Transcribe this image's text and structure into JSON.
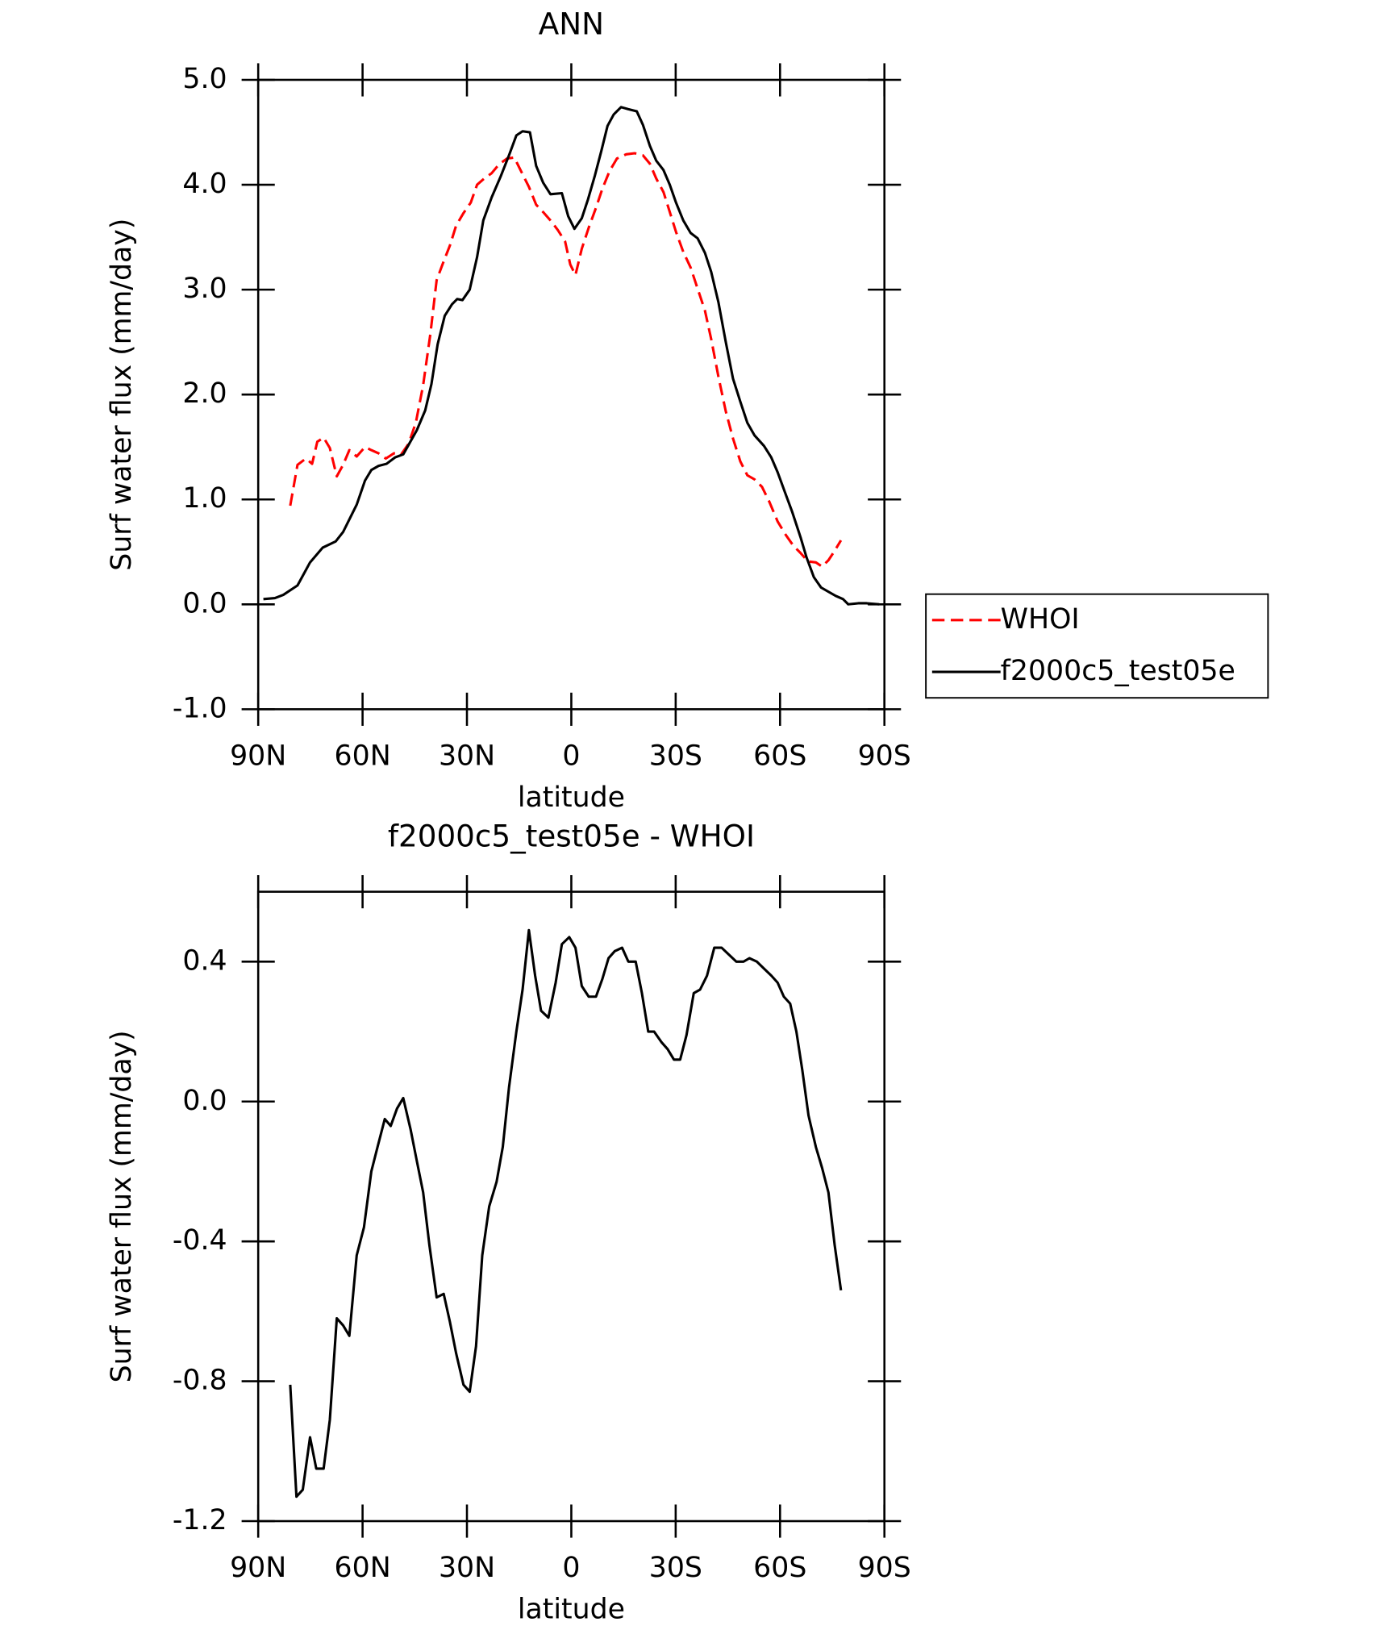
{
  "chart_data": [
    {
      "type": "line",
      "title": "ANN",
      "xlabel": "latitude",
      "ylabel": "Surf water flux (mm/day)",
      "xlim": [
        90,
        -90
      ],
      "xticks": [
        {
          "value": 90,
          "label": "90N"
        },
        {
          "value": 60,
          "label": "60N"
        },
        {
          "value": 30,
          "label": "30N"
        },
        0,
        {
          "value": -30,
          "label": "30S"
        },
        {
          "value": -60,
          "label": "60S"
        },
        {
          "value": -90,
          "label": "90S"
        }
      ],
      "ylim": [
        -1,
        5
      ],
      "yticks": [
        {
          "value": -1,
          "label": "-1.0"
        },
        {
          "value": 0,
          "label": "0.0"
        },
        {
          "value": 1,
          "label": "1.0"
        },
        {
          "value": 2,
          "label": "2.0"
        },
        {
          "value": 3,
          "label": "3.0"
        },
        {
          "value": 4,
          "label": "4.0"
        },
        {
          "value": 5,
          "label": "5.0"
        }
      ],
      "legend": "right",
      "series": [
        {
          "name": "WHOI",
          "color": "#ff0000",
          "style": "dashed",
          "x": [
            80.8,
            78.7,
            76.3,
            74.5,
            73.0,
            71.2,
            69.4,
            67.4,
            65.6,
            63.8,
            61.7,
            59.3,
            57.5,
            55.4,
            53.3,
            51.0,
            48.9,
            46.8,
            44.7,
            42.6,
            40.5,
            38.7,
            36.7,
            34.9,
            33.1,
            31.0,
            28.9,
            27.1,
            25.0,
            22.9,
            20.9,
            18.5,
            16.4,
            14.3,
            12.2,
            10.1,
            8.1,
            6.0,
            3.9,
            1.8,
            0.3,
            -1.2,
            -3.0,
            -5.0,
            -7.1,
            -8.9,
            -11.0,
            -13.1,
            -15.8,
            -18.2,
            -20.6,
            -22.6,
            -24.4,
            -26.5,
            -28.3,
            -30.1,
            -32.2,
            -34.3,
            -36.3,
            -38.4,
            -40.2,
            -42.3,
            -44.4,
            -46.5,
            -48.6,
            -50.6,
            -52.7,
            -54.8,
            -56.9,
            -59.3,
            -61.7,
            -63.8,
            -65.9,
            -68.0,
            -70.3,
            -72.1,
            -73.9,
            -75.7,
            -77.5
          ],
          "values": [
            0.94,
            1.33,
            1.39,
            1.34,
            1.55,
            1.59,
            1.49,
            1.22,
            1.33,
            1.47,
            1.41,
            1.5,
            1.47,
            1.44,
            1.39,
            1.44,
            1.43,
            1.53,
            1.73,
            2.09,
            2.58,
            3.09,
            3.27,
            3.42,
            3.61,
            3.73,
            3.83,
            4.0,
            4.06,
            4.11,
            4.19,
            4.25,
            4.26,
            4.12,
            3.98,
            3.81,
            3.74,
            3.66,
            3.57,
            3.46,
            3.24,
            3.14,
            3.39,
            3.59,
            3.78,
            3.96,
            4.13,
            4.25,
            4.29,
            4.3,
            4.28,
            4.2,
            4.06,
            3.93,
            3.74,
            3.55,
            3.36,
            3.21,
            3.01,
            2.8,
            2.53,
            2.17,
            1.84,
            1.58,
            1.36,
            1.23,
            1.19,
            1.12,
            0.98,
            0.79,
            0.66,
            0.56,
            0.49,
            0.41,
            0.4,
            0.36,
            0.42,
            0.51,
            0.61
          ]
        },
        {
          "name": "f2000c5_test05e",
          "color": "#000000",
          "style": "solid",
          "x": [
            88.5,
            85.2,
            82.8,
            78.7,
            75.1,
            71.5,
            67.7,
            65.6,
            61.7,
            59.3,
            57.5,
            55.4,
            53.1,
            50.7,
            48.3,
            44.4,
            42.0,
            40.2,
            38.4,
            36.4,
            34.3,
            32.8,
            31.3,
            29.2,
            27.1,
            25.3,
            22.9,
            20.3,
            17.9,
            15.8,
            14.0,
            11.9,
            10.1,
            8.1,
            6.0,
            2.7,
            0.9,
            -0.9,
            -3.0,
            -4.8,
            -6.8,
            -8.6,
            -10.4,
            -12.2,
            -14.3,
            -16.4,
            -18.8,
            -20.6,
            -22.6,
            -24.4,
            -26.5,
            -28.3,
            -30.1,
            -32.2,
            -34.3,
            -36.3,
            -38.4,
            -40.2,
            -42.3,
            -44.4,
            -46.5,
            -48.6,
            -50.6,
            -52.7,
            -55.4,
            -57.5,
            -59.3,
            -61.4,
            -63.5,
            -65.9,
            -67.6,
            -69.7,
            -71.8,
            -73.9,
            -76.0,
            -78.1,
            -79.6,
            -82.5,
            -84.9,
            -88.5
          ],
          "values": [
            0.05,
            0.06,
            0.09,
            0.18,
            0.4,
            0.54,
            0.6,
            0.69,
            0.95,
            1.18,
            1.28,
            1.32,
            1.34,
            1.4,
            1.43,
            1.66,
            1.85,
            2.1,
            2.48,
            2.75,
            2.86,
            2.91,
            2.9,
            3.0,
            3.31,
            3.66,
            3.88,
            4.08,
            4.28,
            4.47,
            4.51,
            4.5,
            4.18,
            4.02,
            3.91,
            3.92,
            3.7,
            3.58,
            3.68,
            3.86,
            4.09,
            4.32,
            4.56,
            4.67,
            4.74,
            4.72,
            4.7,
            4.57,
            4.37,
            4.23,
            4.14,
            4.0,
            3.83,
            3.66,
            3.54,
            3.49,
            3.35,
            3.17,
            2.88,
            2.5,
            2.15,
            1.93,
            1.73,
            1.61,
            1.51,
            1.4,
            1.26,
            1.07,
            0.88,
            0.64,
            0.45,
            0.26,
            0.16,
            0.12,
            0.08,
            0.05,
            0.0,
            0.01,
            0.01,
            0.0
          ]
        }
      ]
    },
    {
      "type": "line",
      "title": "f2000c5_test05e - WHOI",
      "xlabel": "latitude",
      "ylabel": "Surf water flux (mm/day)",
      "xlim": [
        90,
        -90
      ],
      "xticks": [
        {
          "value": 90,
          "label": "90N"
        },
        {
          "value": 60,
          "label": "60N"
        },
        {
          "value": 30,
          "label": "30N"
        },
        0,
        {
          "value": -30,
          "label": "30S"
        },
        {
          "value": -60,
          "label": "60S"
        },
        {
          "value": -90,
          "label": "90S"
        }
      ],
      "ylim": [
        -1.2,
        0.6
      ],
      "yticks": [
        {
          "value": -1.2,
          "label": "-1.2"
        },
        {
          "value": -0.8,
          "label": "-0.8"
        },
        {
          "value": -0.4,
          "label": "-0.4"
        },
        {
          "value": 0,
          "label": "0.0"
        },
        0.4
      ],
      "series": [
        {
          "color": "#000000",
          "style": "solid",
          "x": [
            80.8,
            79.0,
            77.2,
            75.1,
            73.3,
            71.2,
            69.4,
            67.4,
            65.6,
            63.8,
            61.7,
            59.6,
            57.5,
            55.7,
            53.6,
            51.9,
            50.1,
            48.3,
            46.2,
            44.4,
            42.6,
            40.8,
            38.7,
            36.7,
            34.9,
            33.1,
            31.0,
            29.2,
            27.4,
            25.6,
            23.6,
            21.5,
            19.7,
            17.9,
            15.8,
            14.0,
            12.2,
            10.4,
            8.7,
            6.6,
            4.5,
            2.7,
            0.6,
            -1.2,
            -3.0,
            -5.0,
            -7.1,
            -8.9,
            -10.7,
            -12.5,
            -14.6,
            -16.4,
            -18.5,
            -20.3,
            -22.1,
            -23.8,
            -25.9,
            -27.7,
            -29.5,
            -31.3,
            -33.1,
            -35.2,
            -37.0,
            -39.0,
            -41.1,
            -43.2,
            -45.3,
            -47.4,
            -49.5,
            -51.2,
            -53.3,
            -55.4,
            -57.5,
            -59.3,
            -61.1,
            -62.9,
            -64.7,
            -66.4,
            -68.2,
            -70.3,
            -72.1,
            -73.9,
            -75.7,
            -77.5
          ],
          "values": [
            -0.81,
            -1.13,
            -1.11,
            -0.96,
            -1.05,
            -1.05,
            -0.91,
            -0.62,
            -0.64,
            -0.67,
            -0.44,
            -0.36,
            -0.2,
            -0.13,
            -0.05,
            -0.07,
            -0.02,
            0.01,
            -0.08,
            -0.17,
            -0.26,
            -0.41,
            -0.56,
            -0.55,
            -0.63,
            -0.72,
            -0.81,
            -0.83,
            -0.7,
            -0.44,
            -0.3,
            -0.23,
            -0.13,
            0.04,
            0.2,
            0.32,
            0.49,
            0.36,
            0.26,
            0.24,
            0.34,
            0.45,
            0.47,
            0.44,
            0.33,
            0.3,
            0.3,
            0.35,
            0.41,
            0.43,
            0.44,
            0.4,
            0.4,
            0.31,
            0.2,
            0.2,
            0.17,
            0.15,
            0.12,
            0.12,
            0.19,
            0.31,
            0.32,
            0.36,
            0.44,
            0.44,
            0.42,
            0.4,
            0.4,
            0.41,
            0.4,
            0.38,
            0.36,
            0.34,
            0.3,
            0.28,
            0.2,
            0.09,
            -0.04,
            -0.13,
            -0.19,
            -0.26,
            -0.41,
            -0.54
          ]
        }
      ]
    }
  ]
}
